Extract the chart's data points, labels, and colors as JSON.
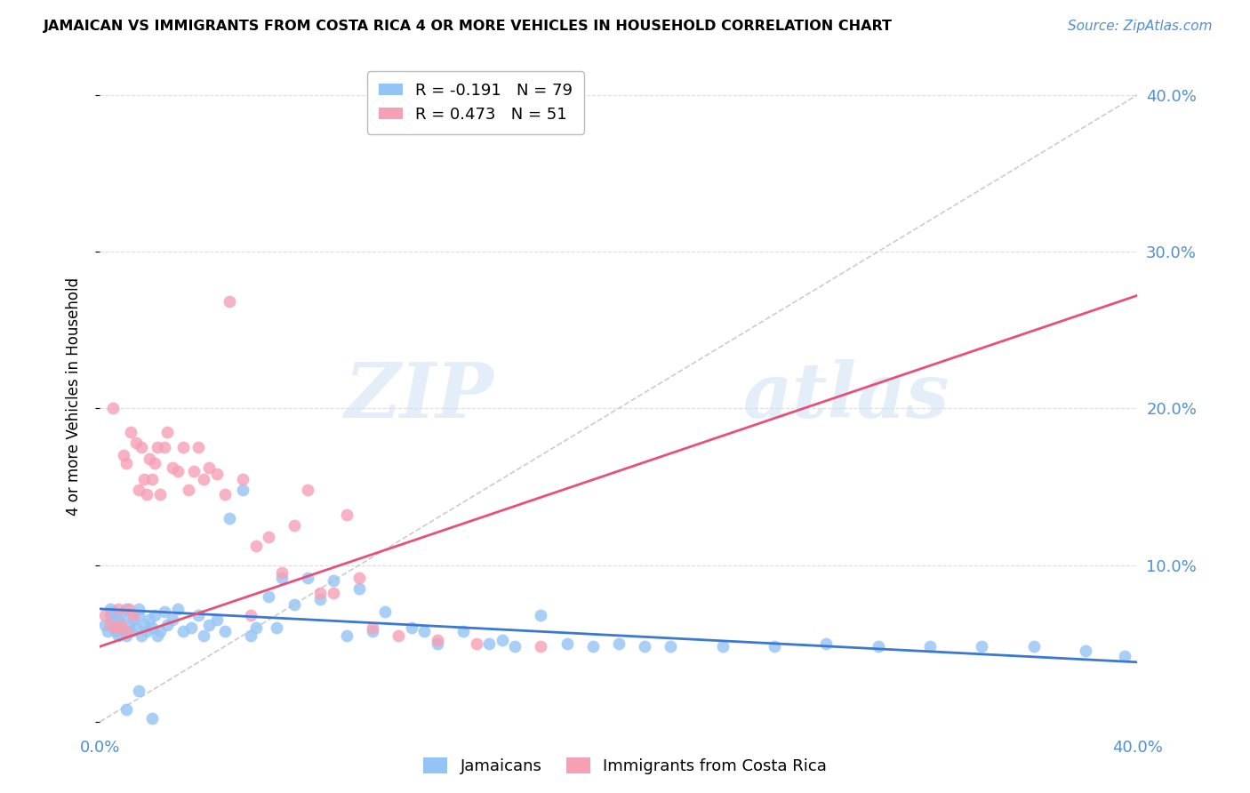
{
  "title": "JAMAICAN VS IMMIGRANTS FROM COSTA RICA 4 OR MORE VEHICLES IN HOUSEHOLD CORRELATION CHART",
  "source": "Source: ZipAtlas.com",
  "ylabel": "4 or more Vehicles in Household",
  "xlim": [
    0.0,
    0.4
  ],
  "ylim": [
    -0.005,
    0.42
  ],
  "blue_R": -0.191,
  "blue_N": 79,
  "pink_R": 0.473,
  "pink_N": 51,
  "blue_color": "#94c4f5",
  "pink_color": "#f5a0b5",
  "blue_line_color": "#3a78d4",
  "pink_line_color": "#e8507a",
  "diagonal_color": "#cccccc",
  "grid_color": "#dddddd",
  "tick_color": "#5090d0",
  "watermark": "ZIPatlas",
  "legend_blue_label": "Jamaicans",
  "legend_pink_label": "Immigrants from Costa Rica",
  "blue_scatter_x": [
    0.002,
    0.003,
    0.004,
    0.004,
    0.005,
    0.005,
    0.006,
    0.006,
    0.007,
    0.007,
    0.008,
    0.009,
    0.01,
    0.01,
    0.011,
    0.012,
    0.013,
    0.014,
    0.015,
    0.015,
    0.016,
    0.017,
    0.018,
    0.019,
    0.02,
    0.021,
    0.022,
    0.023,
    0.025,
    0.026,
    0.028,
    0.03,
    0.032,
    0.035,
    0.038,
    0.04,
    0.042,
    0.045,
    0.048,
    0.05,
    0.055,
    0.058,
    0.06,
    0.065,
    0.068,
    0.07,
    0.075,
    0.08,
    0.085,
    0.09,
    0.095,
    0.1,
    0.105,
    0.11,
    0.12,
    0.125,
    0.13,
    0.14,
    0.15,
    0.155,
    0.16,
    0.17,
    0.18,
    0.19,
    0.2,
    0.21,
    0.22,
    0.24,
    0.26,
    0.28,
    0.3,
    0.32,
    0.34,
    0.36,
    0.38,
    0.395,
    0.01,
    0.015,
    0.02
  ],
  "blue_scatter_y": [
    0.062,
    0.058,
    0.068,
    0.072,
    0.065,
    0.07,
    0.058,
    0.062,
    0.055,
    0.065,
    0.06,
    0.068,
    0.055,
    0.072,
    0.062,
    0.058,
    0.065,
    0.06,
    0.068,
    0.072,
    0.055,
    0.062,
    0.058,
    0.065,
    0.06,
    0.068,
    0.055,
    0.058,
    0.07,
    0.062,
    0.065,
    0.072,
    0.058,
    0.06,
    0.068,
    0.055,
    0.062,
    0.065,
    0.058,
    0.13,
    0.148,
    0.055,
    0.06,
    0.08,
    0.06,
    0.092,
    0.075,
    0.092,
    0.078,
    0.09,
    0.055,
    0.085,
    0.058,
    0.07,
    0.06,
    0.058,
    0.05,
    0.058,
    0.05,
    0.052,
    0.048,
    0.068,
    0.05,
    0.048,
    0.05,
    0.048,
    0.048,
    0.048,
    0.048,
    0.05,
    0.048,
    0.048,
    0.048,
    0.048,
    0.045,
    0.042,
    0.008,
    0.02,
    0.002
  ],
  "pink_scatter_x": [
    0.002,
    0.004,
    0.005,
    0.006,
    0.007,
    0.008,
    0.009,
    0.01,
    0.01,
    0.011,
    0.012,
    0.013,
    0.014,
    0.015,
    0.016,
    0.017,
    0.018,
    0.019,
    0.02,
    0.021,
    0.022,
    0.023,
    0.025,
    0.026,
    0.028,
    0.03,
    0.032,
    0.034,
    0.036,
    0.038,
    0.04,
    0.042,
    0.045,
    0.048,
    0.05,
    0.055,
    0.058,
    0.06,
    0.065,
    0.07,
    0.075,
    0.08,
    0.085,
    0.09,
    0.095,
    0.1,
    0.105,
    0.115,
    0.13,
    0.145,
    0.17
  ],
  "pink_scatter_y": [
    0.068,
    0.062,
    0.2,
    0.06,
    0.072,
    0.062,
    0.17,
    0.058,
    0.165,
    0.072,
    0.185,
    0.068,
    0.178,
    0.148,
    0.175,
    0.155,
    0.145,
    0.168,
    0.155,
    0.165,
    0.175,
    0.145,
    0.175,
    0.185,
    0.162,
    0.16,
    0.175,
    0.148,
    0.16,
    0.175,
    0.155,
    0.162,
    0.158,
    0.145,
    0.268,
    0.155,
    0.068,
    0.112,
    0.118,
    0.095,
    0.125,
    0.148,
    0.082,
    0.082,
    0.132,
    0.092,
    0.06,
    0.055,
    0.052,
    0.05,
    0.048
  ],
  "blue_line_x": [
    0.0,
    0.4
  ],
  "blue_line_y": [
    0.072,
    0.038
  ],
  "pink_line_x": [
    0.0,
    0.4
  ],
  "pink_line_y": [
    0.048,
    0.272
  ]
}
